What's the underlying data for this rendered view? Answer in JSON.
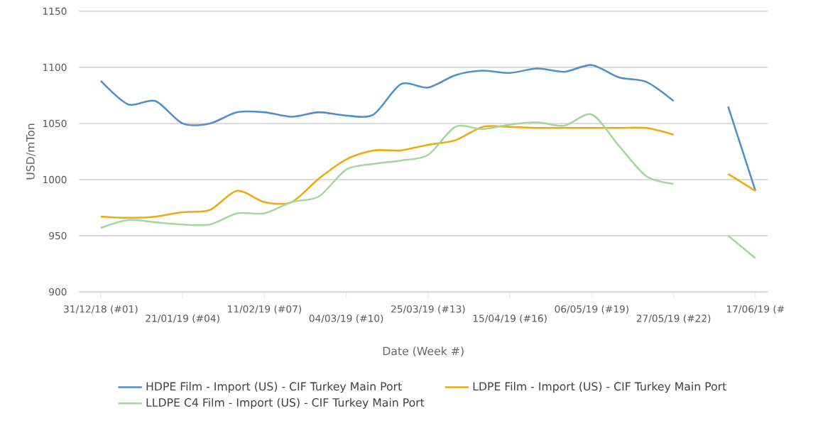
{
  "chart_data": {
    "type": "line",
    "xlabel": "Date (Week #)",
    "ylabel": "USD/mTon",
    "categories": [
      "31/12/18 (#01)",
      null,
      null,
      "21/01/19 (#04)",
      null,
      null,
      "11/02/19 (#07)",
      null,
      null,
      "04/03/19 (#10)",
      null,
      null,
      "25/03/19 (#13)",
      null,
      null,
      "15/04/19 (#16)",
      null,
      null,
      "06/05/19 (#19)",
      null,
      null,
      "27/05/19 (#22)",
      null,
      null,
      "17/06/19 (#"
    ],
    "series": [
      {
        "name": "HDPE Film - Import (US) - CIF Turkey Main Port",
        "color": "#4f8fca",
        "values": [
          1088,
          1067,
          1070,
          1050,
          1050,
          1060,
          1060,
          1056,
          1060,
          1057,
          1058,
          1085,
          1082,
          1093,
          1097,
          1095,
          1099,
          1096,
          1102,
          1091,
          1087,
          1070,
          null,
          1065,
          990
        ]
      },
      {
        "name": "LDPE Film - Import (US) - CIF Turkey Main Port",
        "color": "#eeaa11",
        "values": [
          967,
          966,
          967,
          971,
          973,
          990,
          980,
          980,
          1001,
          1018,
          1026,
          1026,
          1031,
          1035,
          1047,
          1047,
          1046,
          1046,
          1046,
          1046,
          1046,
          1040,
          null,
          1005,
          990
        ]
      },
      {
        "name": "LLDPE C4 Film - Import (US) - CIF Turkey Main Port",
        "color": "#a3d89b",
        "values": [
          957,
          964,
          962,
          960,
          960,
          970,
          970,
          980,
          985,
          1009,
          1014,
          1017,
          1022,
          1047,
          1045,
          1049,
          1051,
          1048,
          1058,
          1030,
          1003,
          996,
          null,
          950,
          930
        ]
      }
    ],
    "ylim": [
      900,
      1150
    ],
    "yticks": [
      900,
      950,
      1000,
      1050,
      1100,
      1150
    ],
    "grid": "y",
    "legend": "bottom",
    "marker": "none",
    "line_style": "solid"
  }
}
